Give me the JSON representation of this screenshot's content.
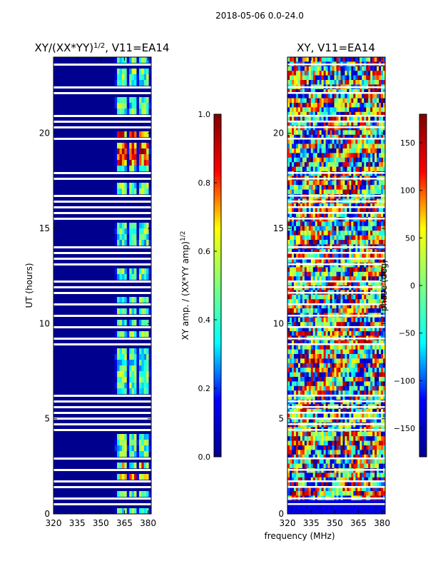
{
  "figure_title": "2018-05-06 0.0-24.0",
  "chart_data": [
    {
      "type": "heatmap",
      "title": "XY/(XX*YY)",
      "title_sup": "1/2",
      "title_suffix": ", V11=EA14",
      "xlabel": "",
      "ylabel": "UT (hours)",
      "xlim": [
        320,
        382
      ],
      "ylim": [
        0,
        24
      ],
      "xticks": [
        "320",
        "335",
        "350",
        "365",
        "380"
      ],
      "yticks": [
        "0",
        "5",
        "10",
        "15",
        "20"
      ],
      "colorbar": {
        "label": "XY amp. / (XX*YY amp)",
        "label_sup": "1/2",
        "range": [
          0.0,
          1.0
        ],
        "ticks": [
          "0.0",
          "0.2",
          "0.4",
          "0.6",
          "0.8",
          "1.0"
        ],
        "colormap": "jet"
      }
    },
    {
      "type": "heatmap",
      "title": "XY, V11=EA14",
      "xlabel": "frequency (MHz)",
      "ylabel": "",
      "xlim": [
        320,
        382
      ],
      "ylim": [
        0,
        24
      ],
      "xticks": [
        "320",
        "335",
        "350",
        "365",
        "380"
      ],
      "yticks": [
        "0",
        "5",
        "10",
        "15",
        "20"
      ],
      "colorbar": {
        "label": "phase (deg)",
        "range": [
          -180,
          180
        ],
        "ticks": [
          "−150",
          "−100",
          "−50",
          "0",
          "50",
          "100",
          "150"
        ],
        "colormap": "jet"
      }
    }
  ],
  "colors": {
    "jet": [
      "#00008f",
      "#0000ff",
      "#00ffff",
      "#7fff7f",
      "#ffff00",
      "#ff0000",
      "#800000"
    ],
    "background": "#ffffff"
  }
}
